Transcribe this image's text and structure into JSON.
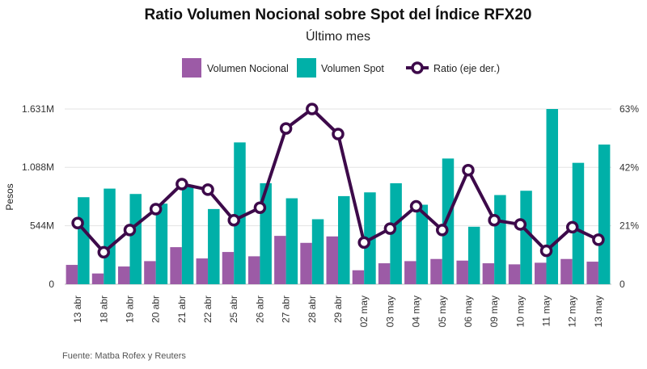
{
  "colors": {
    "nocional": "#9c5ba6",
    "spot": "#00b0a8",
    "ratio": "#3d0a4a"
  },
  "chart_data": {
    "type": "bar",
    "title": "Ratio Volumen Nocional sobre Spot del Índice RFX20",
    "subtitle": "Último mes",
    "ylabel": "Pesos",
    "source": "Fuente: Matba Rofex y Reuters",
    "categories": [
      "13 abr",
      "18 abr",
      "19 abr",
      "20 abr",
      "21 abr",
      "22 abr",
      "25 abr",
      "26 abr",
      "27 abr",
      "28 abr",
      "29 abr",
      "02 may",
      "03 may",
      "04 may",
      "05 may",
      "06 may",
      "09 may",
      "10 may",
      "11 may",
      "12 may",
      "13 may"
    ],
    "series": [
      {
        "name": "Volumen Nocional",
        "axis": "left",
        "kind": "bar",
        "values": [
          180,
          100,
          165,
          215,
          345,
          240,
          300,
          260,
          450,
          385,
          445,
          130,
          195,
          215,
          235,
          220,
          195,
          185,
          200,
          235,
          210
        ]
      },
      {
        "name": "Volumen Spot",
        "axis": "left",
        "kind": "bar",
        "values": [
          810,
          890,
          840,
          750,
          925,
          700,
          1320,
          940,
          800,
          605,
          820,
          855,
          940,
          740,
          1170,
          535,
          830,
          870,
          1631,
          1130,
          1300
        ]
      },
      {
        "name": "Ratio (eje der.)",
        "axis": "right",
        "kind": "line",
        "values": [
          22,
          11.5,
          19.5,
          27,
          36,
          34,
          23,
          27.5,
          56,
          63,
          54,
          15,
          20,
          28,
          19.5,
          41,
          23,
          21.5,
          12,
          20.5,
          16
        ]
      }
    ],
    "y_left": {
      "ylim": [
        0,
        1631
      ],
      "ticks": [
        0,
        544,
        1088,
        1631
      ],
      "tick_labels": [
        "0",
        "544M",
        "1.088M",
        "1.631M"
      ]
    },
    "y_right": {
      "ylim": [
        0,
        63
      ],
      "ticks": [
        0,
        21,
        42,
        63
      ],
      "tick_labels": [
        "0",
        "21%",
        "42%",
        "63%"
      ]
    },
    "legend_position": "top-center",
    "grid": true
  }
}
